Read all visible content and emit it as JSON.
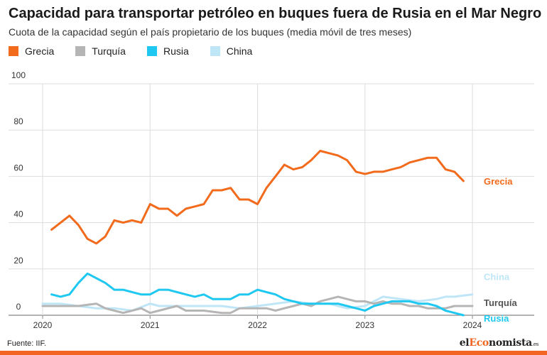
{
  "title": "Capacidad para transportar petróleo en buques fuera de Rusia en el Mar Negro",
  "subtitle": "Cuota de la capacidad según el país propietario de los buques (media móvil de tres meses)",
  "source": "Fuente: IIF.",
  "logo": {
    "prefix": "el",
    "mid": "Eco",
    "rest": "nomista",
    "suffix": ".es"
  },
  "colors": {
    "Grecia": "#f26a1b",
    "Turquía": "#b5b5b5",
    "Rusia": "#1ec8f0",
    "China": "#bfe6f7",
    "grid": "#dddddd",
    "axis": "#555555"
  },
  "chart_data": {
    "type": "line",
    "ylim": [
      0,
      100
    ],
    "yticks": [
      0,
      20,
      40,
      60,
      80,
      100
    ],
    "xlim": [
      2020.0,
      2024.0
    ],
    "xticks": [
      2020,
      2021,
      2022,
      2023,
      2024
    ],
    "series": [
      {
        "name": "Grecia",
        "x": [
          2020.083,
          2020.167,
          2020.25,
          2020.333,
          2020.417,
          2020.5,
          2020.583,
          2020.667,
          2020.75,
          2020.833,
          2020.917,
          2021.0,
          2021.083,
          2021.167,
          2021.25,
          2021.333,
          2021.417,
          2021.5,
          2021.583,
          2021.667,
          2021.75,
          2021.833,
          2021.917,
          2022.0,
          2022.083,
          2022.167,
          2022.25,
          2022.333,
          2022.417,
          2022.5,
          2022.583,
          2022.667,
          2022.75,
          2022.833,
          2022.917,
          2023.0,
          2023.083,
          2023.167,
          2023.25,
          2023.333,
          2023.417,
          2023.5,
          2023.583,
          2023.667,
          2023.75,
          2023.833,
          2023.917
        ],
        "values": [
          37,
          40,
          43,
          39,
          33,
          31,
          34,
          41,
          40,
          41,
          40,
          48,
          46,
          46,
          43,
          46,
          47,
          48,
          54,
          54,
          55,
          50,
          50,
          48,
          55,
          60,
          65,
          63,
          64,
          67,
          71,
          70,
          69,
          67,
          62,
          61,
          62,
          62,
          63,
          64,
          66,
          67,
          68,
          68,
          63,
          62,
          58
        ]
      },
      {
        "name": "Turquía",
        "x": [
          2020.0,
          2020.167,
          2020.333,
          2020.5,
          2020.583,
          2020.667,
          2020.75,
          2020.833,
          2020.917,
          2021.0,
          2021.083,
          2021.167,
          2021.25,
          2021.333,
          2021.5,
          2021.667,
          2021.75,
          2021.833,
          2022.0,
          2022.083,
          2022.167,
          2022.25,
          2022.333,
          2022.417,
          2022.5,
          2022.583,
          2022.667,
          2022.75,
          2022.833,
          2022.917,
          2023.0,
          2023.083,
          2023.167,
          2023.25,
          2023.333,
          2023.417,
          2023.5,
          2023.583,
          2023.667,
          2023.75,
          2023.833,
          2023.917,
          2024.0
        ],
        "values": [
          4,
          4,
          4,
          5,
          3,
          2,
          1,
          2,
          3,
          1,
          2,
          3,
          4,
          2,
          2,
          1,
          1,
          3,
          3,
          3,
          2,
          3,
          4,
          5,
          4,
          6,
          7,
          8,
          7,
          6,
          6,
          5,
          6,
          5,
          5,
          4,
          4,
          3,
          3,
          3,
          4,
          4,
          4
        ]
      },
      {
        "name": "Rusia",
        "x": [
          2020.083,
          2020.167,
          2020.25,
          2020.333,
          2020.417,
          2020.5,
          2020.583,
          2020.667,
          2020.75,
          2020.833,
          2020.917,
          2021.0,
          2021.083,
          2021.167,
          2021.25,
          2021.333,
          2021.417,
          2021.5,
          2021.583,
          2021.667,
          2021.75,
          2021.833,
          2021.917,
          2022.0,
          2022.083,
          2022.167,
          2022.25,
          2022.333,
          2022.417,
          2022.5,
          2022.583,
          2022.667,
          2022.75,
          2022.833,
          2022.917,
          2023.0,
          2023.083,
          2023.167,
          2023.25,
          2023.333,
          2023.417,
          2023.5,
          2023.583,
          2023.667,
          2023.75,
          2023.833,
          2023.917
        ],
        "values": [
          9,
          8,
          9,
          14,
          18,
          16,
          14,
          11,
          11,
          10,
          9,
          9,
          11,
          11,
          10,
          9,
          8,
          9,
          7,
          7,
          7,
          9,
          9,
          11,
          10,
          9,
          7,
          6,
          5,
          5,
          5,
          5,
          5,
          4,
          3,
          2,
          4,
          5,
          6,
          6,
          6,
          5,
          5,
          4,
          2,
          1,
          0
        ]
      },
      {
        "name": "China",
        "x": [
          2020.0,
          2020.167,
          2020.333,
          2020.5,
          2020.667,
          2020.833,
          2021.0,
          2021.083,
          2021.167,
          2021.333,
          2021.5,
          2021.667,
          2021.833,
          2022.0,
          2022.167,
          2022.333,
          2022.5,
          2022.667,
          2022.75,
          2022.833,
          2023.0,
          2023.083,
          2023.167,
          2023.333,
          2023.5,
          2023.667,
          2023.75,
          2023.833,
          2024.0
        ],
        "values": [
          5,
          5,
          4,
          3,
          3,
          2,
          5,
          4,
          4,
          4,
          4,
          4,
          3,
          4,
          5,
          6,
          5,
          5,
          4,
          3,
          4,
          6,
          8,
          7,
          6,
          7,
          8,
          8,
          9
        ]
      }
    ],
    "labels": [
      {
        "series": "Grecia",
        "text": "Grecia"
      },
      {
        "series": "China",
        "text": "China"
      },
      {
        "series": "Turquía",
        "text": "Turquía"
      },
      {
        "series": "Rusia",
        "text": "Rusia"
      }
    ]
  }
}
